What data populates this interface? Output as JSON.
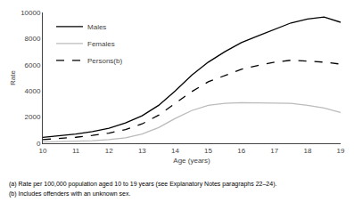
{
  "chart_data": {
    "type": "line",
    "x": [
      10,
      10.5,
      11,
      11.5,
      12,
      12.5,
      13,
      13.5,
      14,
      14.5,
      15,
      15.5,
      16,
      16.5,
      17,
      17.5,
      18,
      18.5,
      19
    ],
    "series": [
      {
        "name": "Males",
        "color": "#000000",
        "line_style": "solid",
        "values": [
          450,
          560,
          700,
          900,
          1150,
          1550,
          2100,
          2900,
          4000,
          5200,
          6200,
          7000,
          7700,
          8200,
          8700,
          9200,
          9500,
          9650,
          9250
        ]
      },
      {
        "name": "Females",
        "color": "#bbbbbb",
        "line_style": "solid",
        "values": [
          100,
          130,
          160,
          200,
          280,
          420,
          700,
          1200,
          1900,
          2500,
          2900,
          3050,
          3100,
          3100,
          3100,
          3050,
          2900,
          2700,
          2350
        ]
      },
      {
        "name": "Persons(b)",
        "color": "#000000",
        "line_style": "dash",
        "values": [
          280,
          360,
          460,
          600,
          780,
          1050,
          1480,
          2150,
          3050,
          3950,
          4700,
          5200,
          5650,
          5950,
          6200,
          6350,
          6300,
          6200,
          6050
        ]
      }
    ],
    "xlabel": "Age (years)",
    "ylabel": "Rate",
    "xlim": [
      10,
      19
    ],
    "ylim": [
      0,
      10000
    ],
    "xticks": [
      10,
      11,
      12,
      13,
      14,
      15,
      16,
      17,
      18,
      19
    ],
    "yticks": [
      0,
      2000,
      4000,
      6000,
      8000,
      10000
    ],
    "annotations": [
      "(a) Rate per 100,000 population aged 10 to 19 years (see Explanatory Notes paragraphs 22–24).",
      "(b) Includes offenders with an unknown sex."
    ],
    "legend": "upper left",
    "grid": false
  }
}
